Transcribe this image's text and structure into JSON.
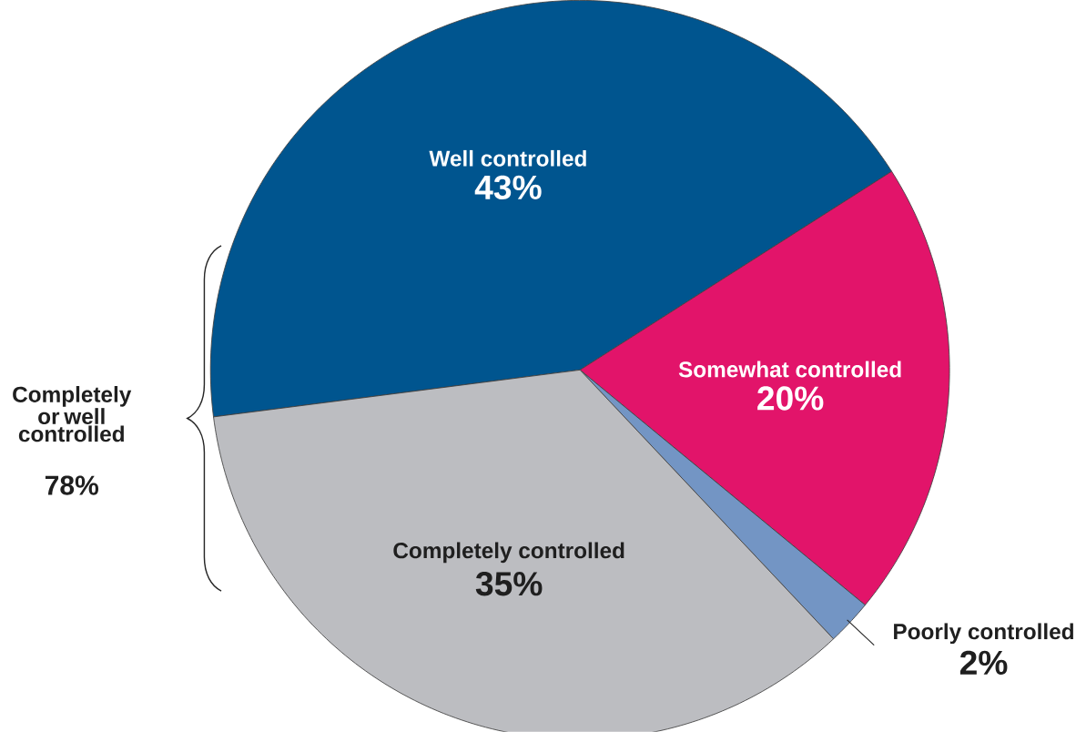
{
  "chart_data": {
    "type": "pie",
    "categories": [
      "Well controlled",
      "Somewhat controlled",
      "Poorly controlled",
      "Completely controlled"
    ],
    "values": [
      43,
      20,
      2,
      35
    ],
    "value_labels": [
      "43%",
      "20%",
      "2%",
      "35%"
    ],
    "colors": [
      "#00558f",
      "#e2146a",
      "#7395c4",
      "#bcbdc1"
    ],
    "annotations": [
      "Completely or well controlled",
      "78%"
    ]
  }
}
